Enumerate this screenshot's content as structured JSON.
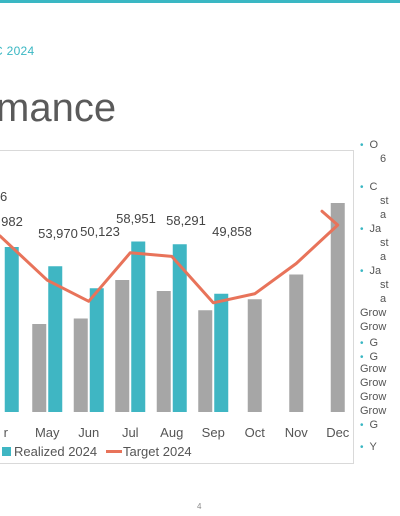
{
  "slide": {
    "subtitle": "C 2024",
    "title": "mance",
    "page_number": "4"
  },
  "bullets": [
    {
      "text": "O",
      "dot": true
    },
    {
      "text": "6",
      "dot": false
    },
    {
      "text": "C",
      "dot": true
    },
    {
      "text": "st",
      "dot": false
    },
    {
      "text": "a",
      "dot": false
    },
    {
      "text": "Ja",
      "dot": true
    },
    {
      "text": "st",
      "dot": false
    },
    {
      "text": "a",
      "dot": false
    },
    {
      "text": "Ja",
      "dot": true
    },
    {
      "text": "st",
      "dot": false
    },
    {
      "text": "a",
      "dot": false
    },
    {
      "text": "Grow",
      "dot": false
    },
    {
      "text": "Grow",
      "dot": false
    },
    {
      "text": "G",
      "dot": true
    },
    {
      "text": "G",
      "dot": true
    },
    {
      "text": "Grow",
      "dot": false
    },
    {
      "text": "Grow",
      "dot": false
    },
    {
      "text": "Grow",
      "dot": false
    },
    {
      "text": "Grow",
      "dot": false
    },
    {
      "text": "G",
      "dot": true
    },
    {
      "text": "Y",
      "dot": true
    }
  ],
  "colors": {
    "accent": "#3ab7c3",
    "realized": "#3fb6c3",
    "prior": "#a6a6a6",
    "target": "#e8735a"
  },
  "chart_data": {
    "type": "bar",
    "categories": [
      "Apr",
      "May",
      "Jun",
      "Jul",
      "Aug",
      "Sep",
      "Oct",
      "Nov",
      "Dec"
    ],
    "category_labels": [
      "r",
      "May",
      "Jun",
      "Jul",
      "Aug",
      "Sep",
      "Oct",
      "Nov",
      "Dec"
    ],
    "series": [
      {
        "name": "",
        "role": "prior",
        "values": [
          null,
          46000,
          47000,
          54000,
          52000,
          48500,
          50500,
          55000,
          68000
        ]
      },
      {
        "name": "Realized 2024",
        "role": "realized",
        "values": [
          60000,
          56500,
          52500,
          61000,
          60500,
          51500,
          null,
          null,
          null
        ]
      },
      {
        "name": "Target 2024",
        "role": "target",
        "type": "line",
        "values": [
          null,
          53970,
          50123,
          58951,
          58291,
          49858,
          51500,
          57000,
          64000
        ]
      }
    ],
    "data_labels": [
      {
        "category": "Apr",
        "text": "982"
      },
      {
        "category": "May",
        "text": "53,970"
      },
      {
        "category": "Jun",
        "text": "50,123"
      },
      {
        "category": "Jul",
        "text": "58,951"
      },
      {
        "category": "Aug",
        "text": "58,291"
      },
      {
        "category": "Sep",
        "text": "49,858"
      }
    ],
    "extra_label": "6",
    "legend": [
      "Realized 2024",
      "Target 2024"
    ],
    "legend_position": "bottom",
    "ylim": [
      30000,
      70000
    ]
  }
}
